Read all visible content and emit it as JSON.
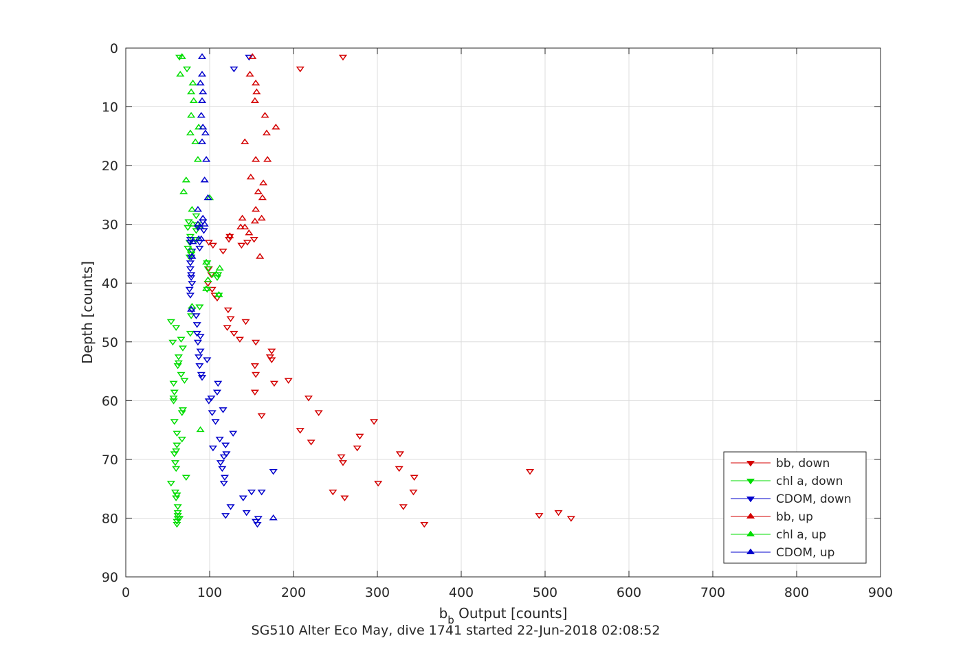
{
  "chart_data": {
    "type": "scatter",
    "xlabel_main": "b",
    "xlabel_sub": "b",
    "xlabel_rest": " Output [counts]",
    "ylabel": "Depth [counts]",
    "caption": "SG510 Alter Eco May, dive 1741 started 22-Jun-2018 02:08:52",
    "xlim": [
      0,
      900
    ],
    "ylim": [
      0,
      90
    ],
    "y_reversed": true,
    "grid": true,
    "legend_position": "bottom-right",
    "x_ticks": [
      0,
      100,
      200,
      300,
      400,
      500,
      600,
      700,
      800,
      900
    ],
    "y_ticks": [
      0,
      10,
      20,
      30,
      40,
      50,
      60,
      70,
      80,
      90
    ],
    "series": [
      {
        "name": "bb, down",
        "color": "#d40000",
        "marker": "triangle-down",
        "points": [
          [
            259,
            1.5
          ],
          [
            208,
            3.5
          ],
          [
            153,
            32.5
          ],
          [
            145,
            33
          ],
          [
            138,
            33.5
          ],
          [
            124,
            32
          ],
          [
            123,
            32.5
          ],
          [
            116,
            34.5
          ],
          [
            104,
            33.5
          ],
          [
            99,
            33
          ],
          [
            99,
            37.5
          ],
          [
            102,
            38.5
          ],
          [
            98,
            40
          ],
          [
            103,
            41
          ],
          [
            106,
            42
          ],
          [
            109,
            42.5
          ],
          [
            122,
            44.5
          ],
          [
            125,
            46
          ],
          [
            143,
            46.5
          ],
          [
            121,
            47.5
          ],
          [
            129,
            48.5
          ],
          [
            136,
            49.5
          ],
          [
            155,
            50
          ],
          [
            174,
            51.5
          ],
          [
            172,
            52.5
          ],
          [
            174,
            53
          ],
          [
            154,
            54
          ],
          [
            155,
            55.5
          ],
          [
            194,
            56.5
          ],
          [
            177,
            57
          ],
          [
            154,
            58.5
          ],
          [
            218,
            59.5
          ],
          [
            230,
            62
          ],
          [
            162,
            62.5
          ],
          [
            296,
            63.5
          ],
          [
            208,
            65
          ],
          [
            279,
            66
          ],
          [
            221,
            67
          ],
          [
            276,
            68
          ],
          [
            257,
            69.5
          ],
          [
            259,
            70.5
          ],
          [
            327,
            69
          ],
          [
            326,
            71.5
          ],
          [
            344,
            73
          ],
          [
            482,
            72
          ],
          [
            301,
            74
          ],
          [
            343,
            75.5
          ],
          [
            247,
            75.5
          ],
          [
            261,
            76.5
          ],
          [
            331,
            78
          ],
          [
            516,
            79
          ],
          [
            493,
            79.5
          ],
          [
            531,
            80
          ],
          [
            356,
            81
          ]
        ]
      },
      {
        "name": "chl a, down",
        "color": "#00dd00",
        "marker": "triangle-down",
        "points": [
          [
            64,
            1.5
          ],
          [
            73,
            3.5
          ],
          [
            84,
            28.5
          ],
          [
            75,
            29.5
          ],
          [
            85,
            30
          ],
          [
            74,
            30.5
          ],
          [
            84,
            31
          ],
          [
            77,
            32
          ],
          [
            84,
            32.5
          ],
          [
            76,
            33
          ],
          [
            74,
            34
          ],
          [
            78,
            35
          ],
          [
            76,
            35.5
          ],
          [
            97,
            36.5
          ],
          [
            98,
            37.5
          ],
          [
            103,
            38.5
          ],
          [
            109,
            39
          ],
          [
            110,
            38.5
          ],
          [
            97,
            41
          ],
          [
            111,
            42
          ],
          [
            88,
            44
          ],
          [
            78,
            45.5
          ],
          [
            54,
            46.5
          ],
          [
            60,
            47.5
          ],
          [
            77,
            48.5
          ],
          [
            66,
            49.5
          ],
          [
            56,
            50
          ],
          [
            68,
            51
          ],
          [
            63,
            52.5
          ],
          [
            63,
            53.5
          ],
          [
            62,
            54
          ],
          [
            66,
            55.5
          ],
          [
            70,
            56.5
          ],
          [
            57,
            57
          ],
          [
            58,
            58.5
          ],
          [
            57,
            59.5
          ],
          [
            57,
            60
          ],
          [
            68,
            61.5
          ],
          [
            67,
            62
          ],
          [
            58,
            63.5
          ],
          [
            61,
            65.5
          ],
          [
            67,
            66.5
          ],
          [
            61,
            67.5
          ],
          [
            60,
            68.5
          ],
          [
            58,
            69
          ],
          [
            59,
            70.5
          ],
          [
            60,
            71.5
          ],
          [
            72,
            73
          ],
          [
            54,
            74
          ],
          [
            59,
            75.5
          ],
          [
            61,
            76
          ],
          [
            60,
            76.5
          ],
          [
            62,
            78
          ],
          [
            62,
            79
          ],
          [
            62,
            79.5
          ],
          [
            62,
            80
          ],
          [
            64,
            80
          ],
          [
            61,
            80.5
          ],
          [
            61,
            81
          ]
        ]
      },
      {
        "name": "CDOM, down",
        "color": "#0000cc",
        "marker": "triangle-down",
        "points": [
          [
            147,
            1.5
          ],
          [
            129,
            3.5
          ],
          [
            92,
            29.5
          ],
          [
            86,
            30.5
          ],
          [
            93,
            31
          ],
          [
            77,
            32.5
          ],
          [
            77,
            33
          ],
          [
            88,
            33
          ],
          [
            88,
            34
          ],
          [
            79,
            34.5
          ],
          [
            78,
            35.5
          ],
          [
            77,
            36.5
          ],
          [
            77,
            37.5
          ],
          [
            78,
            38.5
          ],
          [
            78,
            39
          ],
          [
            79,
            40
          ],
          [
            76,
            41
          ],
          [
            77,
            42
          ],
          [
            79,
            44.5
          ],
          [
            84,
            45.5
          ],
          [
            85,
            47
          ],
          [
            85,
            48.5
          ],
          [
            89,
            49
          ],
          [
            86,
            50
          ],
          [
            89,
            51.5
          ],
          [
            87,
            52.5
          ],
          [
            97,
            53
          ],
          [
            88,
            54
          ],
          [
            90,
            55.5
          ],
          [
            91,
            56
          ],
          [
            110,
            57
          ],
          [
            109,
            58.5
          ],
          [
            102,
            59.5
          ],
          [
            99,
            60
          ],
          [
            116,
            61.5
          ],
          [
            103,
            62
          ],
          [
            107,
            63.5
          ],
          [
            128,
            65.5
          ],
          [
            112,
            66.5
          ],
          [
            119,
            67.5
          ],
          [
            104,
            68
          ],
          [
            120,
            69
          ],
          [
            117,
            69.5
          ],
          [
            113,
            70.5
          ],
          [
            115,
            71.5
          ],
          [
            176,
            72
          ],
          [
            118,
            73
          ],
          [
            117,
            74
          ],
          [
            150,
            75.5
          ],
          [
            162,
            75.5
          ],
          [
            140,
            76.5
          ],
          [
            125,
            78
          ],
          [
            144,
            79
          ],
          [
            119,
            79.5
          ],
          [
            158,
            80
          ],
          [
            155,
            80.5
          ],
          [
            157,
            81
          ]
        ]
      },
      {
        "name": "bb, up",
        "color": "#d40000",
        "marker": "triangle-up",
        "points": [
          [
            151,
            1.5
          ],
          [
            148,
            4.5
          ],
          [
            155,
            6
          ],
          [
            156,
            7.5
          ],
          [
            154,
            9
          ],
          [
            166,
            11.5
          ],
          [
            179,
            13.5
          ],
          [
            168,
            14.5
          ],
          [
            142,
            16
          ],
          [
            155,
            19
          ],
          [
            169,
            19
          ],
          [
            149,
            22
          ],
          [
            164,
            23
          ],
          [
            158,
            24.5
          ],
          [
            163,
            25.5
          ],
          [
            155,
            27.5
          ],
          [
            139,
            29
          ],
          [
            162,
            29
          ],
          [
            154,
            29.5
          ],
          [
            142,
            30.5
          ],
          [
            137,
            30.5
          ],
          [
            147,
            31.5
          ],
          [
            124,
            32
          ],
          [
            160,
            35.5
          ]
        ]
      },
      {
        "name": "chl a, up",
        "color": "#00dd00",
        "marker": "triangle-up",
        "points": [
          [
            67,
            1.5
          ],
          [
            65,
            4.5
          ],
          [
            80,
            6
          ],
          [
            78,
            7.5
          ],
          [
            81,
            9
          ],
          [
            78,
            11.5
          ],
          [
            87,
            13.5
          ],
          [
            77,
            14.5
          ],
          [
            83,
            16
          ],
          [
            86,
            19
          ],
          [
            72,
            22.5
          ],
          [
            69,
            24.5
          ],
          [
            100,
            25.5
          ],
          [
            79,
            27.5
          ],
          [
            80,
            30
          ],
          [
            88,
            30.5
          ],
          [
            78,
            34.5
          ],
          [
            96,
            36.5
          ],
          [
            112,
            37.5
          ],
          [
            108,
            38.5
          ],
          [
            98,
            39.5
          ],
          [
            96,
            41
          ],
          [
            111,
            42
          ],
          [
            79,
            44
          ],
          [
            89,
            65
          ]
        ]
      },
      {
        "name": "CDOM, up",
        "color": "#0000cc",
        "marker": "triangle-up",
        "points": [
          [
            91,
            1.5
          ],
          [
            91,
            4.5
          ],
          [
            89,
            6
          ],
          [
            92,
            7.5
          ],
          [
            91,
            9
          ],
          [
            90,
            11.5
          ],
          [
            92,
            13.5
          ],
          [
            95,
            14.5
          ],
          [
            91,
            16
          ],
          [
            96,
            19
          ],
          [
            94,
            22.5
          ],
          [
            98,
            25.5
          ],
          [
            86,
            27.5
          ],
          [
            92,
            29
          ],
          [
            94,
            30
          ],
          [
            86,
            30
          ],
          [
            89,
            30.5
          ],
          [
            87,
            32.5
          ],
          [
            90,
            32.5
          ],
          [
            80,
            33
          ],
          [
            79,
            35.5
          ],
          [
            78,
            44.5
          ],
          [
            176,
            80
          ]
        ]
      }
    ]
  }
}
